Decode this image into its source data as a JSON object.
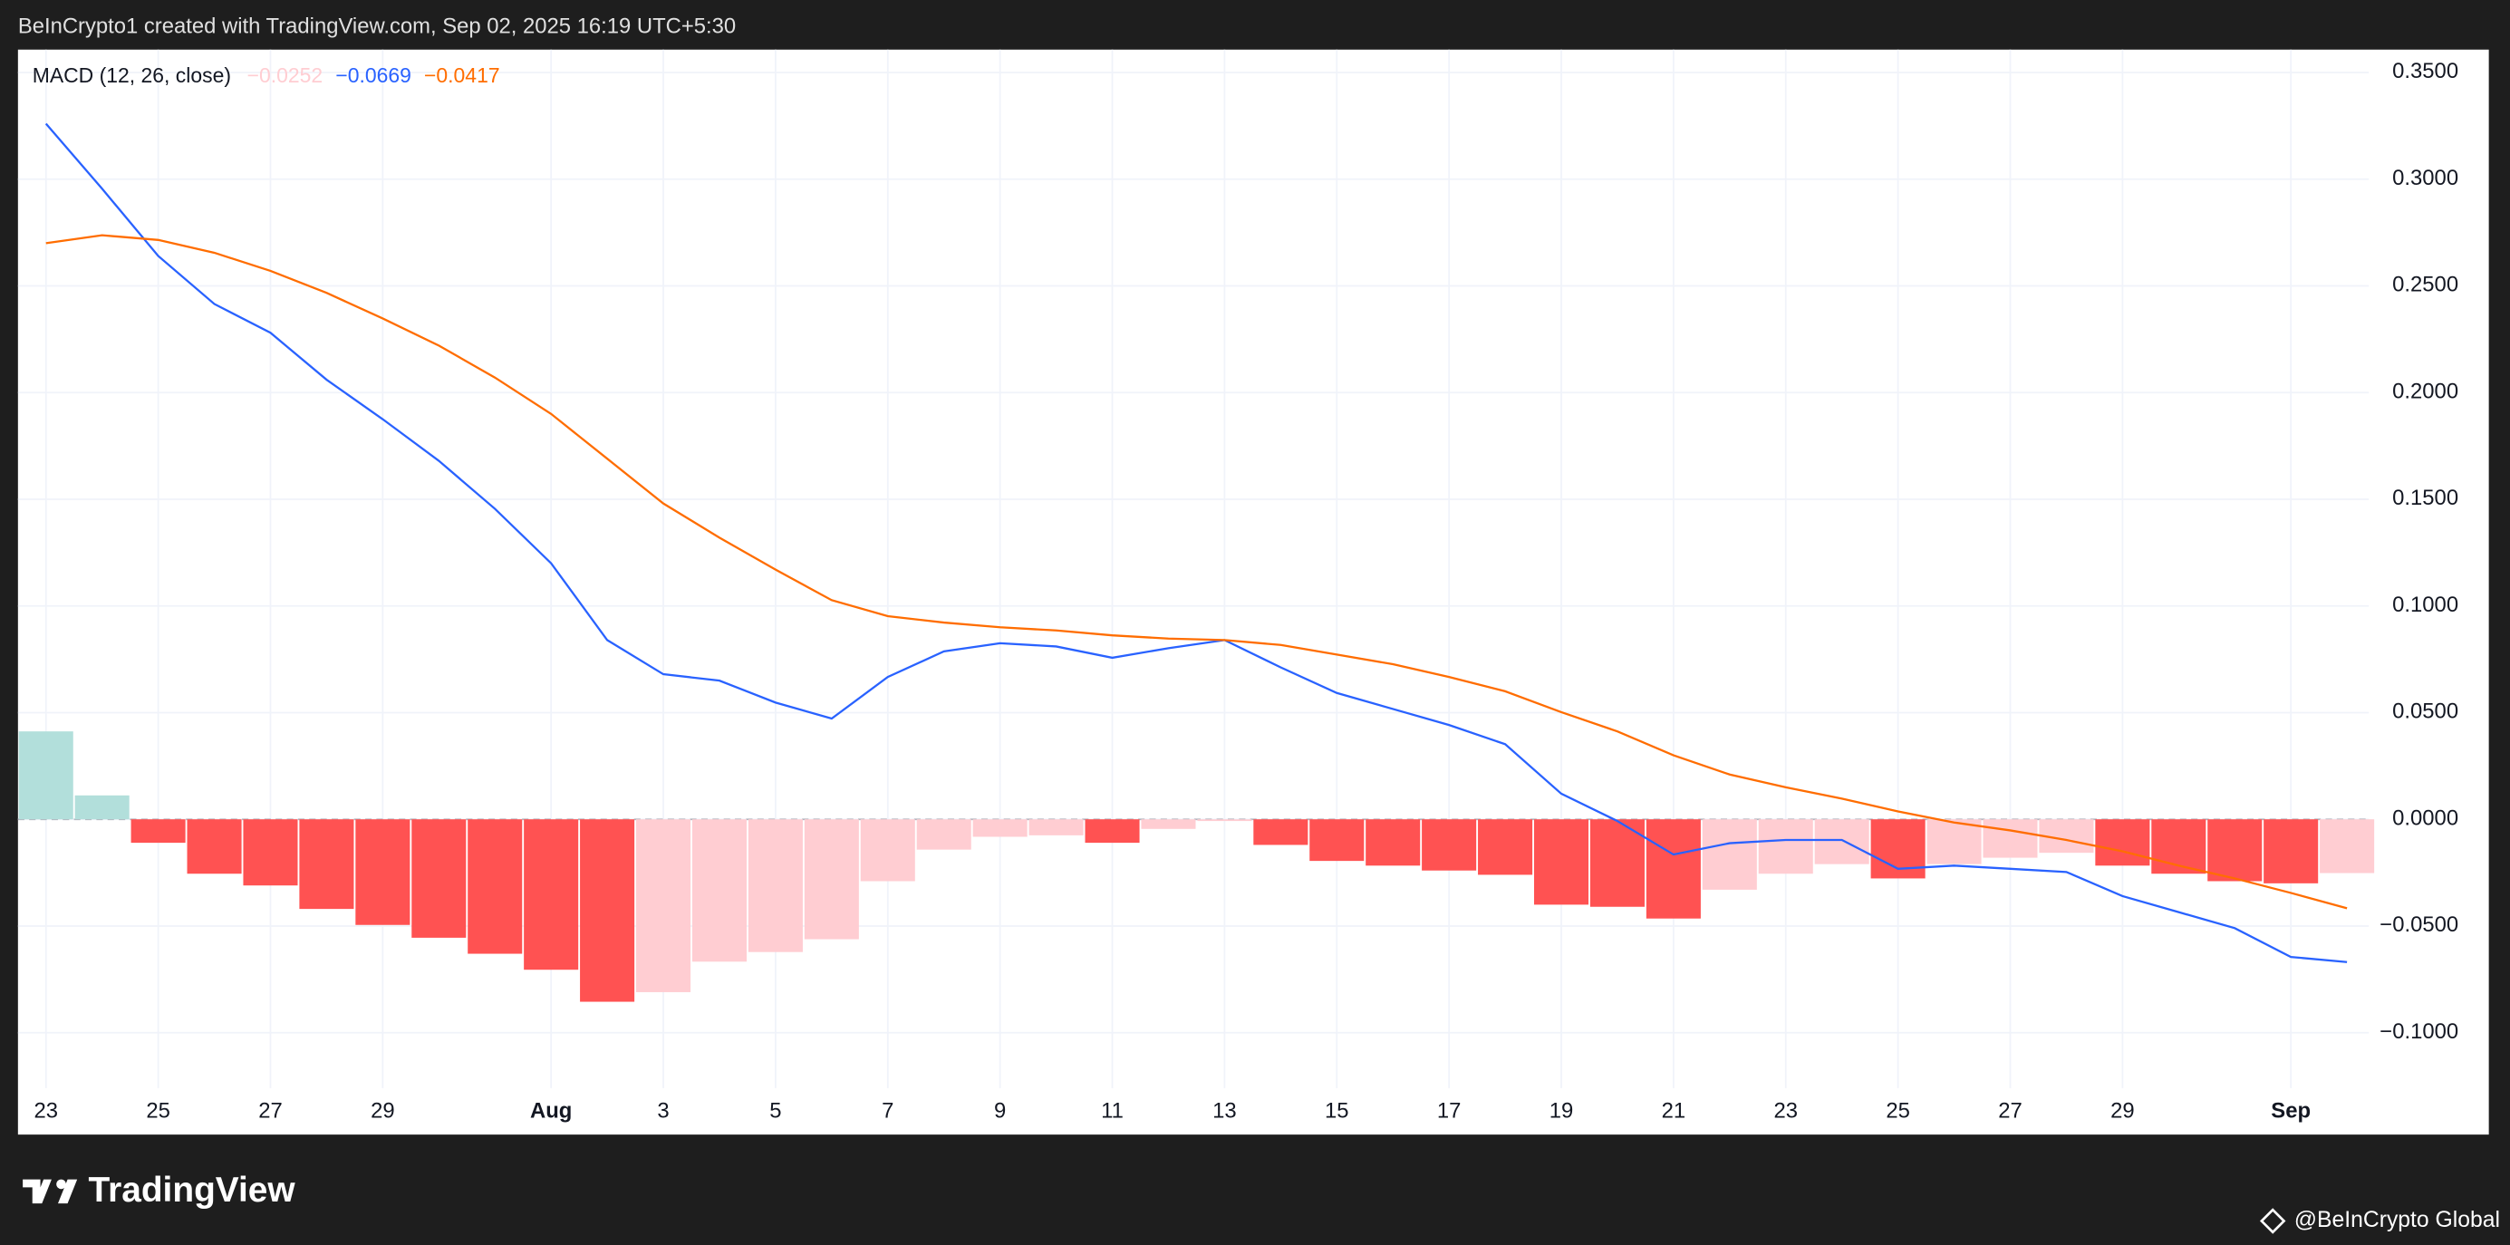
{
  "header": {
    "text": "BeInCrypto1 created with TradingView.com, Sep 02, 2025 16:19 UTC+5:30"
  },
  "footer": {
    "brand": "TradingView",
    "credit": "@BeInCrypto Global"
  },
  "chart_data": {
    "type": "bar",
    "title": "MACD (12, 26, close)",
    "categories": [
      "23",
      null,
      "25",
      null,
      "27",
      null,
      "29",
      null,
      null,
      "Aug",
      null,
      "3",
      null,
      "5",
      null,
      "7",
      null,
      "9",
      null,
      "11",
      null,
      "13",
      null,
      "15",
      null,
      "17",
      null,
      "19",
      null,
      "21",
      null,
      "23",
      null,
      "25",
      null,
      "27",
      null,
      "29",
      null,
      null,
      "Sep",
      null
    ],
    "ylim": [
      -0.126,
      0.3607
    ],
    "yticks": [
      {
        "value": -0.1,
        "label": "−0.1000"
      },
      {
        "value": -0.05,
        "label": "−0.0500"
      },
      {
        "value": 0,
        "label": "0.0000"
      },
      {
        "value": 0.05,
        "label": "0.0500"
      },
      {
        "value": 0.1,
        "label": "0.1000"
      },
      {
        "value": 0.15,
        "label": "0.1500"
      },
      {
        "value": 0.2,
        "label": "0.2000"
      },
      {
        "value": 0.25,
        "label": "0.2500"
      },
      {
        "value": 0.3,
        "label": "0.3000"
      },
      {
        "value": 0.35,
        "label": "0.3500"
      }
    ],
    "grid": true,
    "series": [
      {
        "type": "bar",
        "legend_value": "−0.0252",
        "color": "#ffcdd2",
        "values": [
          0.0412,
          0.0112,
          -0.011,
          -0.0255,
          -0.031,
          -0.042,
          -0.0495,
          -0.0555,
          -0.063,
          -0.0705,
          -0.0855,
          -0.081,
          -0.0667,
          -0.0622,
          -0.0562,
          -0.029,
          -0.0142,
          -0.0082,
          -0.0075,
          -0.011,
          -0.0045,
          -0.0008,
          -0.012,
          -0.0195,
          -0.0217,
          -0.024,
          -0.026,
          -0.04,
          -0.041,
          -0.0465,
          -0.033,
          -0.0255,
          -0.021,
          -0.0277,
          -0.021,
          -0.018,
          -0.0157,
          -0.0217,
          -0.0255,
          -0.029,
          -0.03,
          -0.0252
        ],
        "colors": [
          "#b2dfdb",
          "#b2dfdb",
          "#ff5252",
          "#ff5252",
          "#ff5252",
          "#ff5252",
          "#ff5252",
          "#ff5252",
          "#ff5252",
          "#ff5252",
          "#ff5252",
          "#ffcdd2",
          "#ffcdd2",
          "#ffcdd2",
          "#ffcdd2",
          "#ffcdd2",
          "#ffcdd2",
          "#ffcdd2",
          "#ffcdd2",
          "#ff5252",
          "#ffcdd2",
          "#ffcdd2",
          "#ff5252",
          "#ff5252",
          "#ff5252",
          "#ff5252",
          "#ff5252",
          "#ff5252",
          "#ff5252",
          "#ff5252",
          "#ffcdd2",
          "#ffcdd2",
          "#ffcdd2",
          "#ff5252",
          "#ffcdd2",
          "#ffcdd2",
          "#ffcdd2",
          "#ff5252",
          "#ff5252",
          "#ff5252",
          "#ff5252",
          "#ffcdd2"
        ]
      },
      {
        "type": "line",
        "legend_value": "−0.0669",
        "color": "#2962ff",
        "values": [
          0.326,
          0.2955,
          0.264,
          0.2415,
          0.228,
          0.206,
          0.1875,
          0.168,
          0.1455,
          0.12,
          0.084,
          0.068,
          0.065,
          0.0547,
          0.0472,
          0.0667,
          0.0787,
          0.0825,
          0.081,
          0.0757,
          0.0802,
          0.084,
          0.0712,
          0.0592,
          0.0517,
          0.0442,
          0.0352,
          0.012,
          -0.0008,
          -0.0165,
          -0.0112,
          -0.0097,
          -0.0097,
          -0.0232,
          -0.0217,
          -0.0232,
          -0.0247,
          -0.036,
          -0.0435,
          -0.051,
          -0.0645,
          -0.0669
        ]
      },
      {
        "type": "line",
        "legend_value": "−0.0417",
        "color": "#ff6d00",
        "values": [
          0.27,
          0.2737,
          0.2715,
          0.2655,
          0.257,
          0.2467,
          0.2347,
          0.222,
          0.207,
          0.19,
          0.169,
          0.148,
          0.132,
          0.117,
          0.1027,
          0.0952,
          0.0922,
          0.09,
          0.0885,
          0.0862,
          0.0847,
          0.084,
          0.0817,
          0.0772,
          0.0727,
          0.0667,
          0.06,
          0.0502,
          0.0412,
          0.03,
          0.021,
          0.015,
          0.0097,
          0.0037,
          -0.0015,
          -0.0052,
          -0.0097,
          -0.015,
          -0.0217,
          -0.0277,
          -0.0345,
          -0.0417
        ]
      }
    ]
  }
}
